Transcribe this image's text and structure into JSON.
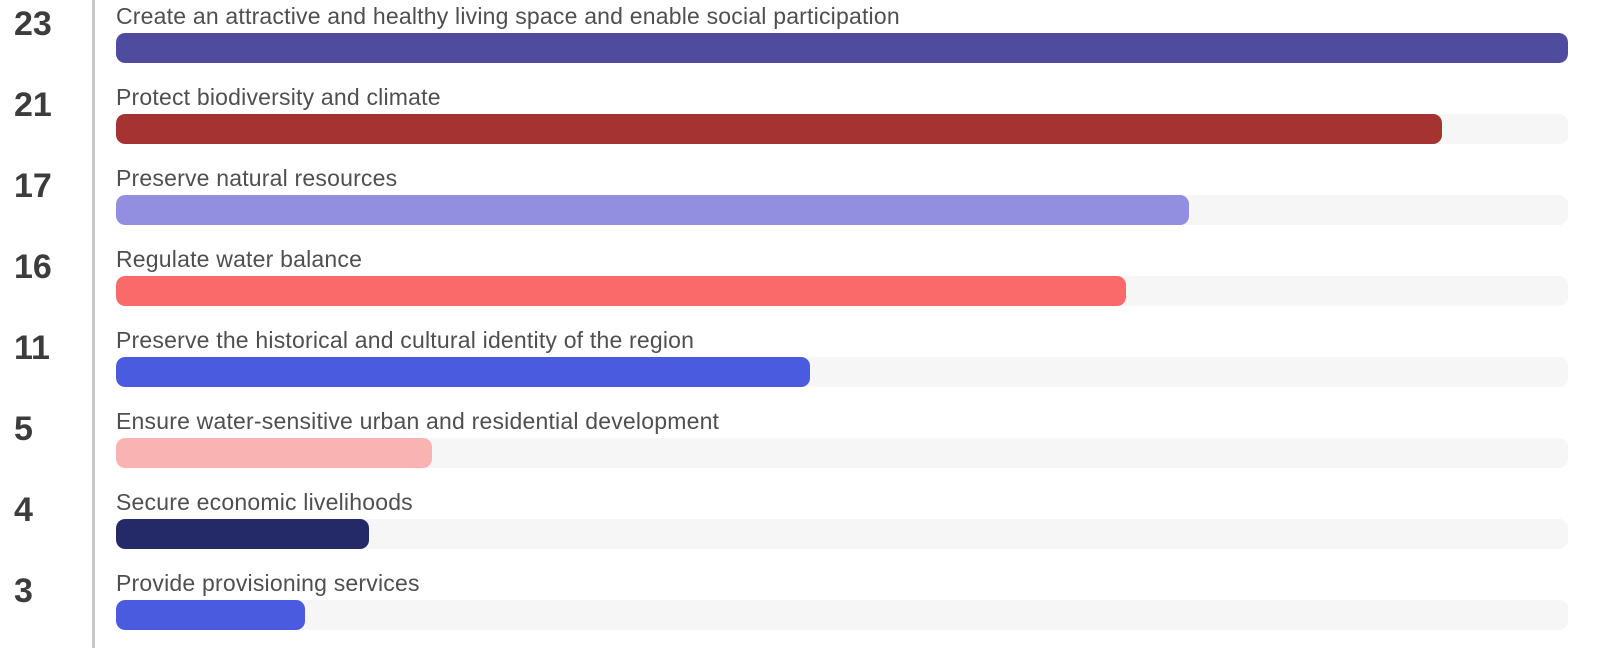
{
  "chart_data": {
    "type": "bar",
    "orientation": "horizontal",
    "title": "",
    "xlabel": "",
    "ylabel": "",
    "grid": false,
    "legend": "none",
    "xlim": [
      0,
      23
    ],
    "categories": [
      "Create an attractive and healthy living space and enable social participation",
      "Protect biodiversity and climate",
      "Preserve natural resources",
      "Regulate water balance",
      "Preserve the historical and cultural identity of the region",
      "Ensure water-sensitive urban and residential development",
      "Secure economic livelihoods",
      "Provide provisioning services"
    ],
    "values": [
      23,
      21,
      17,
      16,
      11,
      5,
      4,
      3
    ],
    "bar_colors": [
      "#4F4B9E",
      "#A43331",
      "#928FE0",
      "#FA6A6A",
      "#4A5BE0",
      "#F9B3B3",
      "#242A67",
      "#4A5BE0"
    ],
    "track_color": "#F6F6F7",
    "value_label_color": "#3C3C3C",
    "category_label_color": "#4F4F4F",
    "divider_color": "#C9C9C9",
    "background_color": "#FFFFFF"
  }
}
